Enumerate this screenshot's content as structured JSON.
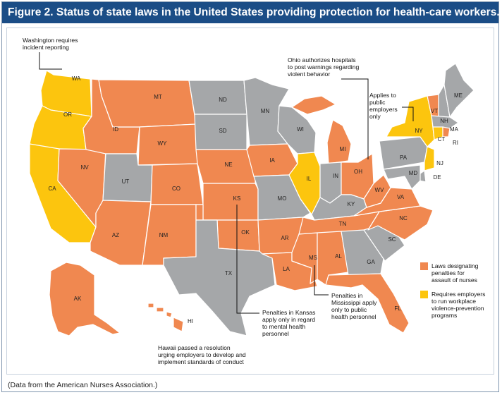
{
  "title": "Figure 2. Status of state laws in the United States providing protection for health-care workers.",
  "footer": "(Data from the American Nurses Association.)",
  "colors": {
    "orange": "#f08850",
    "yellow": "#fcc50e",
    "gray": "#a5a7a9",
    "title_bg": "#1b4d86"
  },
  "legend": [
    {
      "key": "orange",
      "lines": [
        "Laws designating",
        "penalties for",
        "assault of nurses"
      ]
    },
    {
      "key": "yellow",
      "lines": [
        "Requires employers",
        "to run workplace",
        "violence-prevention",
        "programs"
      ]
    }
  ],
  "annotations": {
    "washington": [
      "Washington requires",
      "incident reporting"
    ],
    "ohio": [
      "Ohio authorizes hospitals",
      "to post warnings regarding",
      "violent behavior"
    ],
    "newyork": [
      "Applies to",
      "public",
      "employers",
      "only"
    ],
    "kansas": [
      "Penalties in Kansas",
      "apply only in regard",
      "to mental health",
      "personnel"
    ],
    "mississippi": [
      "Penalties in",
      "Mississippi apply",
      "only to public",
      "health personnel"
    ],
    "hawaii": [
      "Hawaii passed a resolution",
      "urging employers to develop and",
      "implement standards of conduct"
    ]
  },
  "states": {
    "WA": "yellow",
    "OR": "yellow",
    "CA": "yellow",
    "NV": "orange",
    "ID": "orange",
    "MT": "orange",
    "WY": "orange",
    "UT": "gray",
    "CO": "orange",
    "AZ": "orange",
    "NM": "orange",
    "ND": "gray",
    "SD": "gray",
    "NE": "orange",
    "KS": "orange",
    "OK": "orange",
    "TX": "gray",
    "MN": "gray",
    "IA": "orange",
    "MO": "gray",
    "AR": "orange",
    "LA": "orange",
    "WI": "gray",
    "IL": "yellow",
    "MI": "orange",
    "IN": "gray",
    "OH": "orange",
    "KY": "gray",
    "TN": "orange",
    "MS": "orange",
    "AL": "orange",
    "GA": "gray",
    "FL": "orange",
    "SC": "gray",
    "NC": "orange",
    "VA": "orange",
    "WV": "orange",
    "PA": "gray",
    "NY": "yellow",
    "VT": "orange",
    "NH": "gray",
    "ME": "gray",
    "MA": "gray",
    "RI": "orange",
    "CT": "yellow",
    "NJ": "yellow",
    "DE": "gray",
    "MD": "gray",
    "AK": "orange",
    "HI": "orange"
  }
}
